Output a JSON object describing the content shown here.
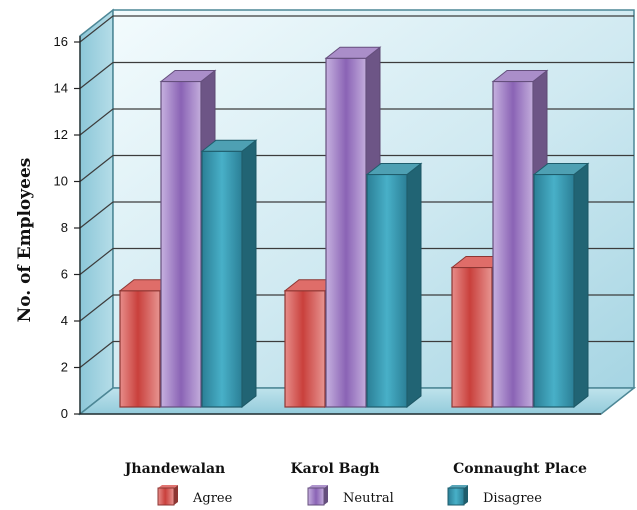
{
  "chart_data": {
    "type": "bar",
    "categories": [
      "Jhandewalan",
      "Karol Bagh",
      "Connaught Place"
    ],
    "series": [
      {
        "name": "Agree",
        "values": [
          5,
          5,
          6
        ],
        "color": "#d9534f"
      },
      {
        "name": "Neutral",
        "values": [
          14,
          15,
          14
        ],
        "color": "#9b7ac0"
      },
      {
        "name": "Disagree",
        "values": [
          11,
          10,
          10
        ],
        "color": "#2f8fa6"
      }
    ],
    "ylabel": "No. of Employees",
    "ylim": [
      0,
      16
    ],
    "yticks": [
      0,
      2,
      4,
      6,
      8,
      10,
      12,
      14,
      16
    ],
    "grid": true,
    "legend": "bottom",
    "style": "3d-bar"
  }
}
